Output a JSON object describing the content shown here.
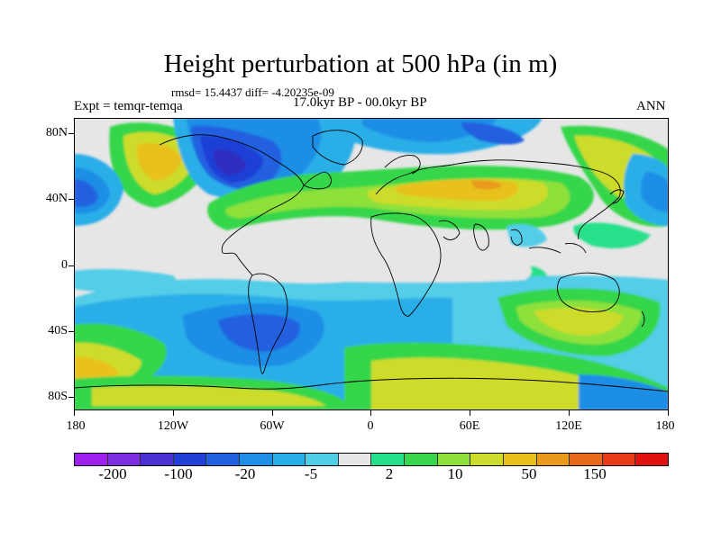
{
  "title": "Height perturbation at 500 hPa (in m)",
  "stats": "rmsd= 15.4437 diff= -4.20235e-09",
  "period": "17.0kyr BP - 00.0kyr BP",
  "experiment": "Expt = temqr-temqa",
  "season": "ANN",
  "y_ticks": [
    "80N",
    "40N",
    "0",
    "40S",
    "80S"
  ],
  "x_ticks": [
    "180",
    "120W",
    "60W",
    "0",
    "60E",
    "120E",
    "180"
  ],
  "colorbar": {
    "colors": [
      "#a020f0",
      "#7b2fe0",
      "#4b2fd0",
      "#1f3fd6",
      "#2060e0",
      "#1f8ee6",
      "#29aee8",
      "#52cde8",
      "#e6e6e6",
      "#25e08a",
      "#38d64c",
      "#8ee03a",
      "#cddc2a",
      "#e8c11c",
      "#e89a1c",
      "#e86a1c",
      "#e83a16",
      "#e01212"
    ],
    "labels": [
      "-200",
      "-100",
      "-20",
      "-5",
      "2",
      "10",
      "50",
      "150"
    ]
  },
  "colors": {
    "neutral": "#e6e6e6",
    "coast": "#000000"
  }
}
